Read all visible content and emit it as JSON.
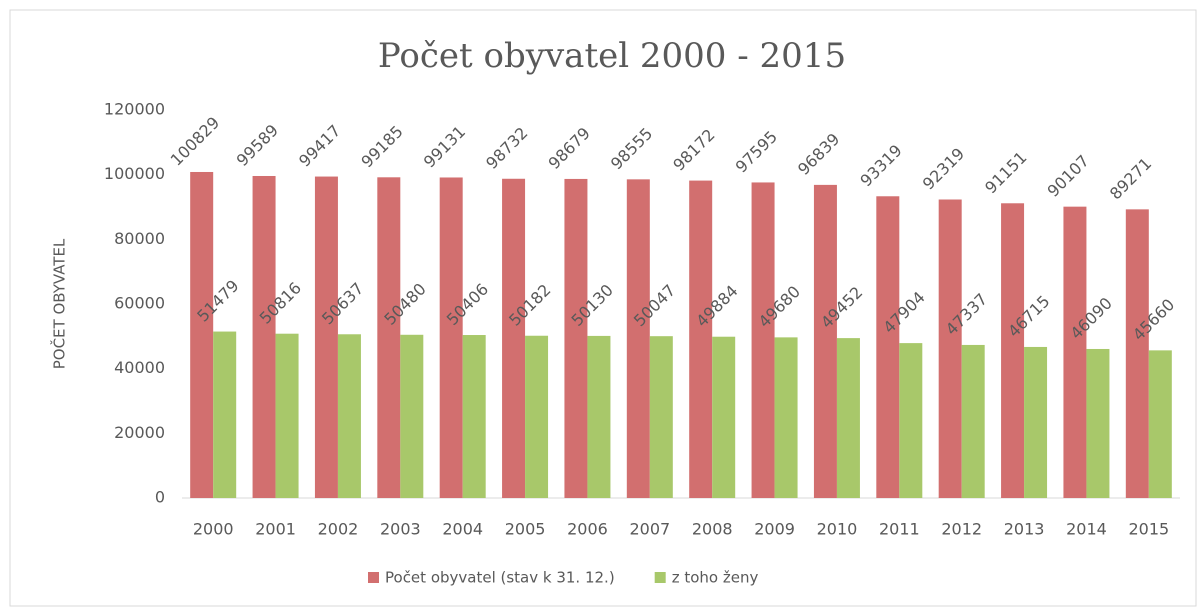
{
  "chart_data": {
    "type": "bar",
    "title": "Počet obyvatel 2000 - 2015",
    "y_label": "POČET OBYVATEL",
    "categories": [
      "2000",
      "2001",
      "2002",
      "2003",
      "2004",
      "2005",
      "2006",
      "2007",
      "2008",
      "2009",
      "2010",
      "2011",
      "2012",
      "2013",
      "2014",
      "2015"
    ],
    "series": [
      {
        "name": "Počet obyvatel (stav k 31. 12.)",
        "color": "#d26f6f",
        "values": [
          100829,
          99589,
          99417,
          99185,
          99131,
          98732,
          98679,
          98555,
          98172,
          97595,
          96839,
          93319,
          92319,
          91151,
          90107,
          89271
        ]
      },
      {
        "name": "z toho ženy",
        "color": "#a8c86a",
        "values": [
          51479,
          50816,
          50637,
          50480,
          50406,
          50182,
          50130,
          50047,
          49884,
          49680,
          49452,
          47904,
          47337,
          46715,
          46090,
          45660
        ]
      }
    ],
    "ylim": [
      0,
      120000
    ],
    "yticks": [
      0,
      20000,
      40000,
      60000,
      80000,
      100000,
      120000
    ],
    "legend": "bottom",
    "data_labels": true
  }
}
